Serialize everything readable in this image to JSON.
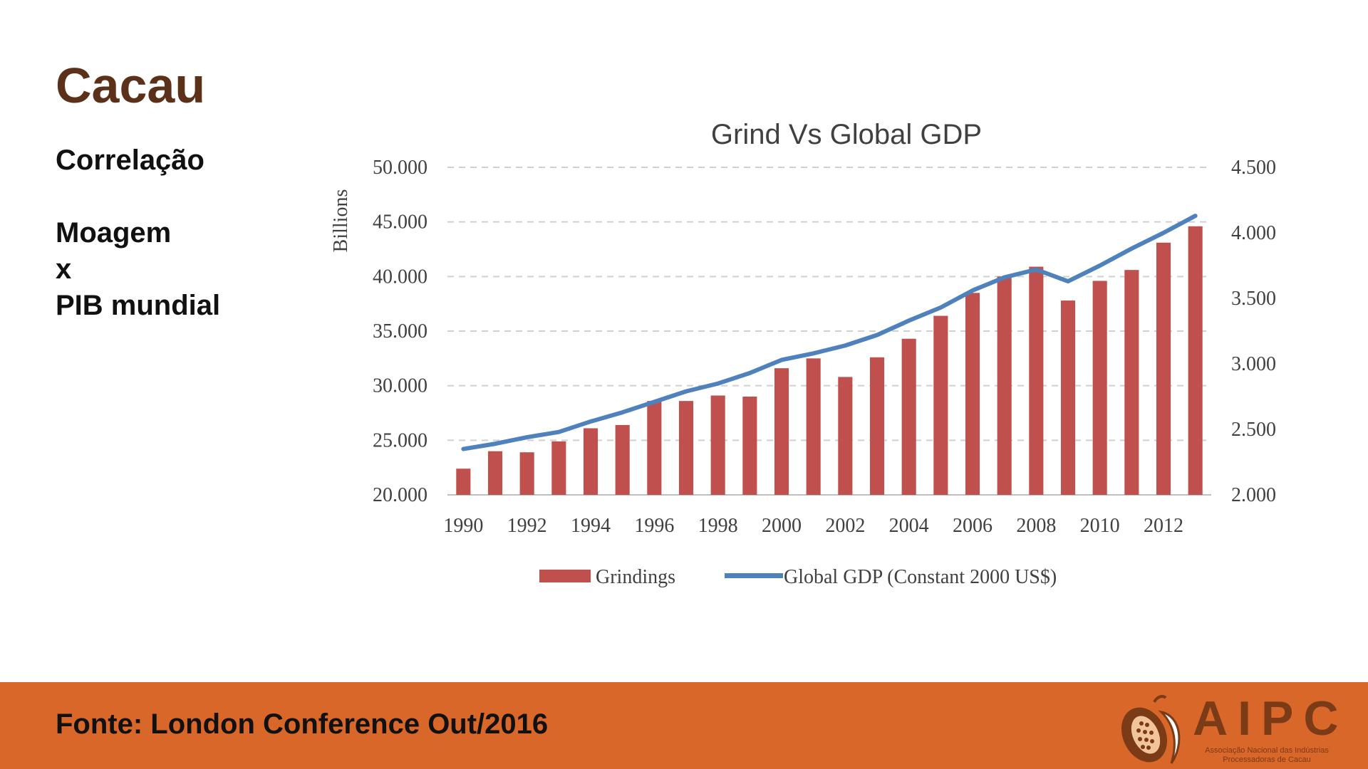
{
  "slide": {
    "title": "Cacau",
    "subtitle_lines": [
      "Correlação",
      "Moagem",
      "x",
      "PIB mundial"
    ],
    "footer_source": "Fonte: London Conference Out/2016"
  },
  "logo": {
    "name": "AIPC",
    "tagline_1": "Associação Nacional das Indústrias",
    "tagline_2": "Processadoras de Cacau",
    "icon": "cocoa-pod-icon"
  },
  "colors": {
    "title": "#5b3219",
    "footer_bg": "#d9672a",
    "bar": "#c0504d",
    "line": "#4f81bd",
    "grid": "#d0d0d0"
  },
  "chart_data": {
    "type": "bar",
    "title": "Grind Vs Global GDP",
    "ylabel_left": "Billions",
    "ylim_left": [
      20000,
      50000
    ],
    "yticks_left": [
      "20.000",
      "25.000",
      "30.000",
      "35.000",
      "40.000",
      "45.000",
      "50.000"
    ],
    "ylim_right": [
      2000,
      4500
    ],
    "yticks_right": [
      "2.000",
      "2.500",
      "3.000",
      "3.500",
      "4.000",
      "4.500"
    ],
    "categories": [
      1990,
      1991,
      1992,
      1993,
      1994,
      1995,
      1996,
      1997,
      1998,
      1999,
      2000,
      2001,
      2002,
      2003,
      2004,
      2005,
      2006,
      2007,
      2008,
      2009,
      2010,
      2011,
      2012,
      2013
    ],
    "x_tick_labels": [
      "1990",
      "1992",
      "1994",
      "1996",
      "1998",
      "2000",
      "2002",
      "2004",
      "2006",
      "2008",
      "2010",
      "2012"
    ],
    "series": [
      {
        "name": "Grindings",
        "type": "bar",
        "axis": "left",
        "values": [
          22400,
          24000,
          23900,
          24900,
          26100,
          26400,
          28600,
          28600,
          29100,
          29000,
          31600,
          32500,
          30800,
          32600,
          34300,
          36400,
          38500,
          40000,
          40900,
          37800,
          39600,
          40600,
          43100,
          44600
        ]
      },
      {
        "name": "Global GDP (Constant 2000 US$)",
        "type": "line",
        "axis": "right",
        "values": [
          2350,
          2390,
          2440,
          2480,
          2560,
          2630,
          2710,
          2790,
          2850,
          2930,
          3030,
          3080,
          3140,
          3220,
          3330,
          3430,
          3560,
          3660,
          3720,
          3630,
          3750,
          3880,
          4000,
          4130
        ]
      }
    ],
    "legend_position": "bottom",
    "grid": true
  }
}
